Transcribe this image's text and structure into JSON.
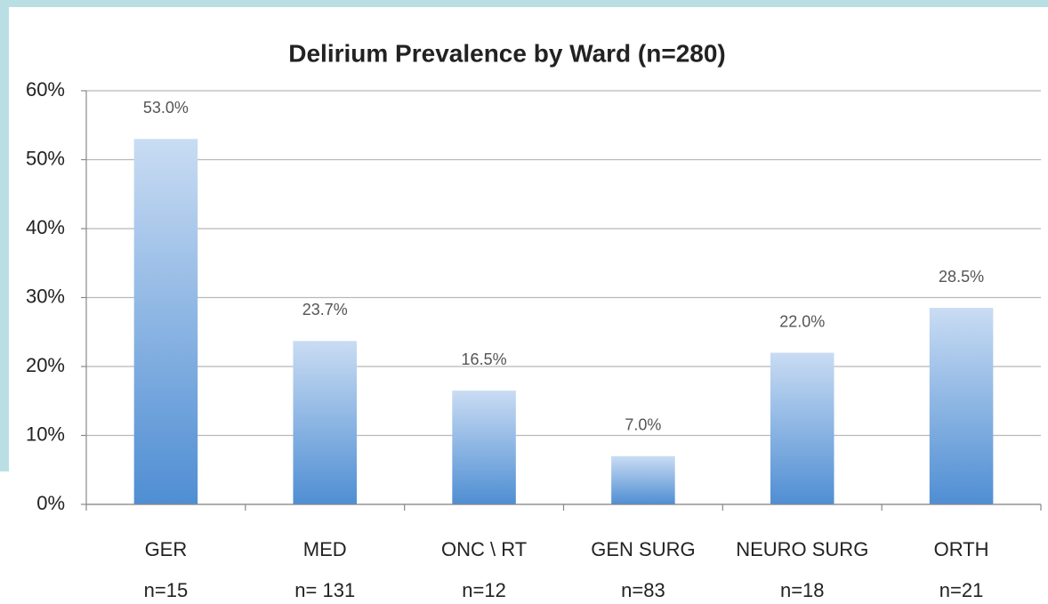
{
  "chart_data": {
    "type": "bar",
    "title": "Delirium Prevalence by Ward (n=280)",
    "categories": [
      "GER",
      "MED",
      "ONC \\ RT",
      "GEN SURG",
      "NEURO SURG",
      "ORTH"
    ],
    "category_counts": [
      "n=15",
      "n= 131",
      "n=12",
      "n=83",
      "n=18",
      "n=21"
    ],
    "values": [
      53.0,
      23.7,
      16.5,
      7.0,
      22.0,
      28.5
    ],
    "value_labels": [
      "53.0%",
      "23.7%",
      "16.5%",
      "7.0%",
      "22.0%",
      "28.5%"
    ],
    "color": "#4f8ed3",
    "ylim": [
      0,
      60
    ],
    "yticks": [
      {
        "value": 0,
        "label": "0%"
      },
      {
        "value": 10,
        "label": "10%"
      },
      {
        "value": 20,
        "label": "20%"
      },
      {
        "value": 30,
        "label": "30%"
      },
      {
        "value": 40,
        "label": "40%"
      },
      {
        "value": 50,
        "label": "50%"
      },
      {
        "value": 60,
        "label": "60%"
      }
    ],
    "grid": true
  }
}
